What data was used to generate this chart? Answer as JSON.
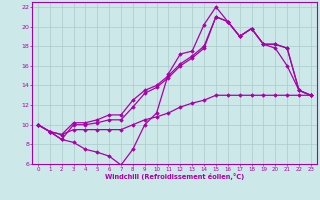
{
  "background_color": "#cce8e8",
  "grid_color": "#aacccc",
  "line_color": "#aa00aa",
  "marker": "D",
  "marker_size": 1.8,
  "line_width": 0.9,
  "xlabel": "Windchill (Refroidissement éolien,°C)",
  "xlim": [
    -0.5,
    23.5
  ],
  "ylim": [
    6,
    22.5
  ],
  "yticks": [
    6,
    8,
    10,
    12,
    14,
    16,
    18,
    20,
    22
  ],
  "xticks": [
    0,
    1,
    2,
    3,
    4,
    5,
    6,
    7,
    8,
    9,
    10,
    11,
    12,
    13,
    14,
    15,
    16,
    17,
    18,
    19,
    20,
    21,
    22,
    23
  ],
  "lines": [
    [
      0,
      10.0,
      1,
      9.3,
      2,
      8.5,
      3,
      8.2,
      4,
      7.5,
      5,
      7.2,
      6,
      6.8,
      7,
      5.9,
      8,
      7.5,
      9,
      10.0,
      10,
      11.2,
      11,
      15.2,
      12,
      17.2,
      13,
      17.5,
      14,
      20.2,
      15,
      22.0,
      16,
      20.5,
      17,
      19.0,
      18,
      19.8,
      19,
      18.2,
      20,
      17.8,
      21,
      16.0,
      22,
      13.5,
      23,
      13.0
    ],
    [
      0,
      10.0,
      1,
      9.3,
      2,
      8.5,
      3,
      10.0,
      4,
      10.0,
      5,
      10.2,
      6,
      10.5,
      7,
      10.5,
      8,
      11.8,
      9,
      13.2,
      10,
      13.8,
      11,
      14.8,
      12,
      16.0,
      13,
      16.8,
      14,
      17.8,
      15,
      21.0,
      16,
      20.5,
      17,
      19.0,
      18,
      19.8,
      19,
      18.2,
      20,
      18.2,
      21,
      17.8,
      22,
      13.5,
      23,
      13.0
    ],
    [
      0,
      10.0,
      1,
      9.3,
      2,
      9.0,
      3,
      10.2,
      4,
      10.2,
      5,
      10.5,
      6,
      11.0,
      7,
      11.0,
      8,
      12.5,
      9,
      13.5,
      10,
      14.0,
      11,
      15.0,
      12,
      16.2,
      13,
      17.0,
      14,
      18.0,
      15,
      21.0,
      16,
      20.5,
      17,
      19.0,
      18,
      19.8,
      19,
      18.2,
      20,
      18.2,
      21,
      17.8,
      22,
      13.5,
      23,
      13.0
    ],
    [
      0,
      10.0,
      1,
      9.3,
      2,
      9.0,
      3,
      9.5,
      4,
      9.5,
      5,
      9.5,
      6,
      9.5,
      7,
      9.5,
      8,
      10.0,
      9,
      10.5,
      10,
      10.8,
      11,
      11.2,
      12,
      11.8,
      13,
      12.2,
      14,
      12.5,
      15,
      13.0,
      16,
      13.0,
      17,
      13.0,
      18,
      13.0,
      19,
      13.0,
      20,
      13.0,
      21,
      13.0,
      22,
      13.0,
      23,
      13.0
    ]
  ]
}
